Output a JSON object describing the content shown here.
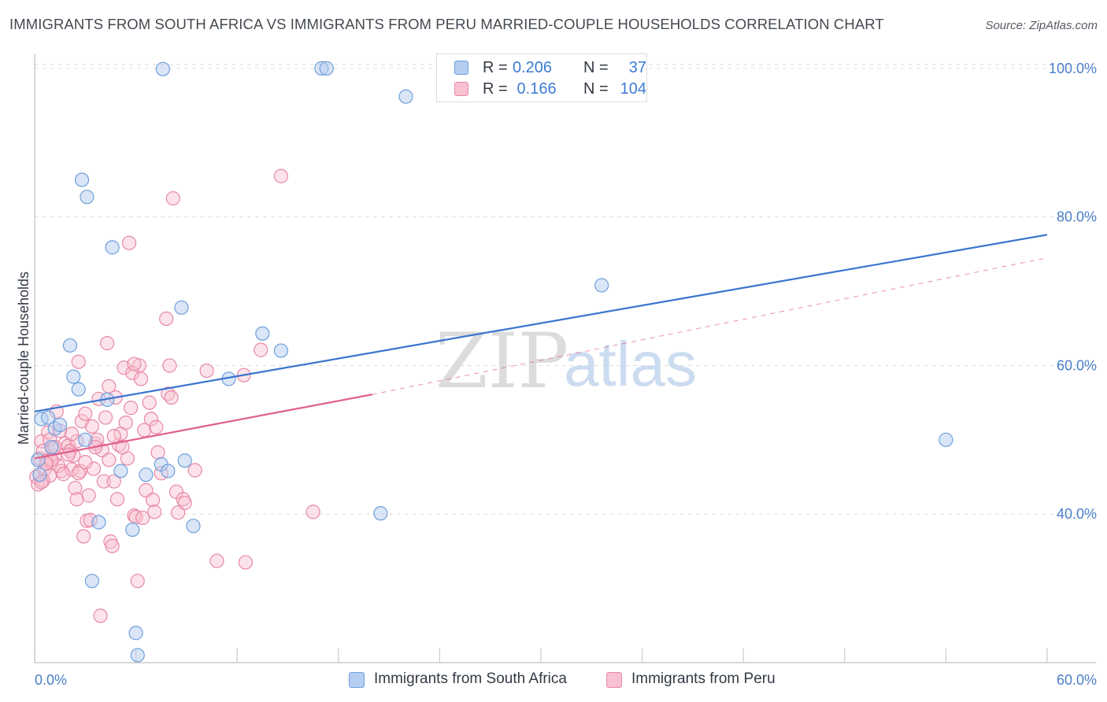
{
  "header": {
    "title": "IMMIGRANTS FROM SOUTH AFRICA VS IMMIGRANTS FROM PERU MARRIED-COUPLE HOUSEHOLDS CORRELATION CHART",
    "source": "Source: ZipAtlas.com"
  },
  "watermark": {
    "part1": "ZIP",
    "part2": "atlas"
  },
  "legend": {
    "rows": [
      {
        "r_label": "R =",
        "r_value": "0.206",
        "n_label": "N =",
        "n_value": "37"
      },
      {
        "r_label": "R =",
        "r_value": " 0.166",
        "n_label": "N =",
        "n_value": "104"
      }
    ]
  },
  "bottom_legend": {
    "south_africa": "Immigrants from South Africa",
    "peru": "Immigrants from Peru"
  },
  "colors": {
    "blue_fill": "#b5cdf0",
    "blue_edge": "#6e9fdc",
    "blue_line": "#3a75cf",
    "pink_fill": "#f8c0d0",
    "pink_edge": "#e888a6",
    "pink_line": "#e0608a",
    "grid": "#dddddd",
    "axis_text": "#4a7fc9"
  },
  "chart_data": {
    "type": "scatter",
    "title": "IMMIGRANTS FROM SOUTH AFRICA VS IMMIGRANTS FROM PERU MARRIED-COUPLE HOUSEHOLDS CORRELATION CHART",
    "xlabel": "",
    "ylabel": "Married-couple Households",
    "xlim": [
      0,
      60
    ],
    "ylim": [
      20,
      102
    ],
    "x_tick_labels": [
      "0.0%",
      "60.0%"
    ],
    "y_ticks": [
      40,
      60,
      80,
      100
    ],
    "y_tick_labels": [
      "40.0%",
      "60.0%",
      "80.0%",
      "100.0%"
    ],
    "grid": true,
    "series": [
      {
        "name": "Immigrants from South Africa",
        "color": "#6e9fdc",
        "points": [
          [
            0.3,
            45.3
          ],
          [
            0.4,
            52.8
          ],
          [
            0.8,
            53.0
          ],
          [
            1.2,
            51.5
          ],
          [
            1.5,
            52.0
          ],
          [
            2.1,
            62.7
          ],
          [
            2.3,
            58.5
          ],
          [
            2.6,
            56.8
          ],
          [
            2.8,
            85.0
          ],
          [
            3.0,
            50.0
          ],
          [
            3.1,
            82.7
          ],
          [
            3.4,
            31.0
          ],
          [
            3.8,
            38.9
          ],
          [
            4.3,
            55.4
          ],
          [
            4.6,
            75.9
          ],
          [
            5.1,
            45.8
          ],
          [
            5.8,
            37.9
          ],
          [
            6.0,
            24.0
          ],
          [
            6.1,
            21.0
          ],
          [
            6.6,
            45.3
          ],
          [
            7.5,
            46.7
          ],
          [
            7.6,
            99.9
          ],
          [
            7.9,
            45.8
          ],
          [
            8.7,
            67.8
          ],
          [
            8.9,
            47.2
          ],
          [
            9.4,
            38.4
          ],
          [
            11.5,
            58.2
          ],
          [
            13.5,
            64.3
          ],
          [
            14.6,
            62.0
          ],
          [
            17.0,
            100.0
          ],
          [
            17.3,
            100.0
          ],
          [
            20.5,
            40.1
          ],
          [
            22.0,
            96.2
          ],
          [
            33.6,
            70.8
          ],
          [
            54.0,
            50.0
          ],
          [
            0.2,
            47.3
          ],
          [
            1.0,
            49.0
          ]
        ]
      },
      {
        "name": "Immigrants from Peru",
        "color": "#e888a6",
        "points": [
          [
            0.1,
            45.0
          ],
          [
            0.2,
            44.0
          ],
          [
            0.3,
            47.5
          ],
          [
            0.4,
            49.8
          ],
          [
            0.5,
            48.5
          ],
          [
            0.6,
            46.0
          ],
          [
            0.7,
            47.2
          ],
          [
            0.8,
            51.0
          ],
          [
            0.9,
            50.0
          ],
          [
            1.0,
            47.0
          ],
          [
            1.1,
            48.8
          ],
          [
            1.2,
            47.8
          ],
          [
            1.3,
            53.8
          ],
          [
            1.5,
            51.2
          ],
          [
            1.6,
            45.8
          ],
          [
            1.8,
            49.5
          ],
          [
            2.0,
            49.2
          ],
          [
            2.1,
            48.5
          ],
          [
            2.2,
            46.0
          ],
          [
            2.3,
            47.9
          ],
          [
            2.4,
            43.5
          ],
          [
            2.5,
            42.0
          ],
          [
            2.6,
            60.5
          ],
          [
            2.7,
            45.8
          ],
          [
            2.8,
            52.5
          ],
          [
            2.9,
            37.0
          ],
          [
            3.0,
            53.5
          ],
          [
            3.1,
            39.1
          ],
          [
            3.2,
            42.5
          ],
          [
            3.3,
            39.2
          ],
          [
            3.5,
            46.1
          ],
          [
            3.6,
            49.5
          ],
          [
            3.7,
            50.0
          ],
          [
            3.8,
            55.5
          ],
          [
            3.9,
            26.3
          ],
          [
            4.0,
            48.6
          ],
          [
            4.1,
            44.4
          ],
          [
            4.2,
            53.0
          ],
          [
            4.3,
            63.0
          ],
          [
            4.4,
            57.2
          ],
          [
            4.5,
            36.3
          ],
          [
            4.6,
            35.7
          ],
          [
            4.7,
            44.4
          ],
          [
            4.8,
            55.7
          ],
          [
            4.9,
            42.0
          ],
          [
            5.0,
            49.3
          ],
          [
            5.1,
            50.8
          ],
          [
            5.3,
            59.7
          ],
          [
            5.4,
            52.3
          ],
          [
            5.5,
            47.5
          ],
          [
            5.6,
            76.5
          ],
          [
            5.7,
            54.3
          ],
          [
            5.8,
            59.0
          ],
          [
            5.9,
            39.8
          ],
          [
            6.0,
            39.6
          ],
          [
            6.1,
            31.0
          ],
          [
            6.2,
            60.0
          ],
          [
            6.3,
            58.2
          ],
          [
            6.5,
            51.3
          ],
          [
            6.6,
            43.2
          ],
          [
            6.8,
            55.0
          ],
          [
            6.9,
            52.8
          ],
          [
            7.0,
            41.9
          ],
          [
            7.1,
            40.3
          ],
          [
            7.2,
            51.7
          ],
          [
            7.3,
            48.3
          ],
          [
            7.5,
            45.5
          ],
          [
            7.8,
            66.3
          ],
          [
            7.9,
            56.2
          ],
          [
            8.1,
            55.7
          ],
          [
            8.2,
            82.5
          ],
          [
            8.4,
            43.0
          ],
          [
            8.5,
            40.2
          ],
          [
            8.8,
            42.0
          ],
          [
            8.9,
            41.5
          ],
          [
            9.5,
            45.9
          ],
          [
            10.2,
            59.3
          ],
          [
            10.8,
            33.7
          ],
          [
            12.4,
            58.7
          ],
          [
            12.5,
            33.5
          ],
          [
            13.4,
            62.1
          ],
          [
            14.6,
            85.5
          ],
          [
            16.5,
            40.3
          ],
          [
            1.4,
            46.5
          ],
          [
            0.9,
            45.2
          ],
          [
            2.0,
            48.0
          ],
          [
            3.6,
            49.0
          ],
          [
            5.2,
            49.0
          ],
          [
            4.4,
            47.3
          ],
          [
            1.7,
            45.4
          ],
          [
            0.5,
            44.5
          ],
          [
            2.6,
            45.5
          ],
          [
            3.4,
            51.8
          ],
          [
            6.4,
            39.5
          ],
          [
            8.0,
            60.0
          ],
          [
            1.0,
            47.3
          ],
          [
            2.5,
            49.8
          ],
          [
            0.4,
            44.3
          ],
          [
            3.0,
            47.0
          ],
          [
            4.7,
            50.5
          ],
          [
            1.2,
            49.0
          ],
          [
            0.7,
            46.8
          ],
          [
            5.9,
            60.2
          ],
          [
            2.2,
            50.8
          ]
        ]
      }
    ],
    "trendlines": [
      {
        "series": "Immigrants from South Africa",
        "x": [
          0,
          60
        ],
        "y": [
          53.8,
          77.6
        ],
        "style": "solid"
      },
      {
        "series": "Immigrants from Peru",
        "x": [
          0,
          20
        ],
        "y": [
          47.5,
          56.1
        ],
        "style": "solid"
      },
      {
        "series": "Immigrants from Peru",
        "x": [
          20,
          60
        ],
        "y": [
          56.1,
          74.5
        ],
        "style": "dashed"
      }
    ]
  }
}
